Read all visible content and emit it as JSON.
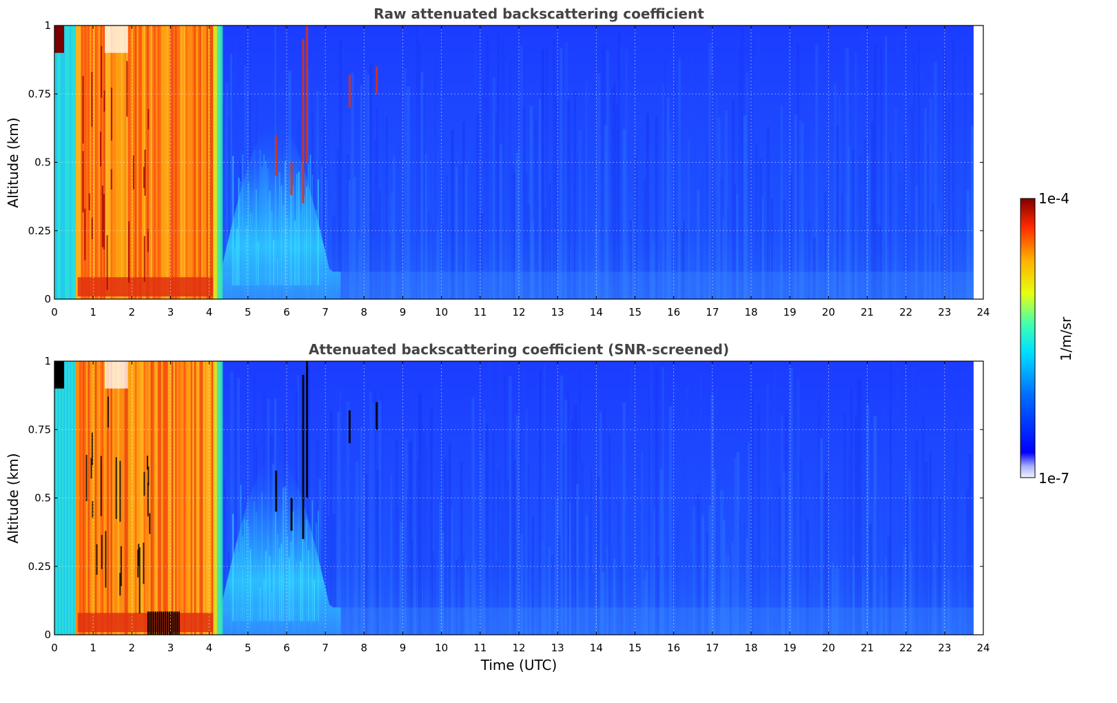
{
  "chart_data": [
    {
      "type": "heatmap",
      "title": "Raw attenuated backscattering coefficient",
      "xlabel": "",
      "ylabel": "Altitude (km)",
      "xlim": [
        0,
        24
      ],
      "ylim": [
        0,
        1
      ],
      "x_ticks": [
        "0",
        "1",
        "2",
        "3",
        "4",
        "5",
        "6",
        "7",
        "8",
        "9",
        "10",
        "11",
        "12",
        "13",
        "14",
        "15",
        "16",
        "17",
        "18",
        "19",
        "20",
        "21",
        "22",
        "23",
        "24"
      ],
      "y_ticks": [
        "0",
        "0.25",
        "0.5",
        "0.75",
        "1"
      ],
      "grid": true,
      "data_extent_x": [
        0,
        23.75
      ],
      "features": [
        {
          "description": "cyan-green near-surface layer",
          "x_range": [
            0,
            0.55
          ],
          "level": "mid"
        },
        {
          "description": "strong orange/red backscatter column (fog/low cloud)",
          "x_range": [
            0.55,
            4.2
          ],
          "level": "high"
        },
        {
          "description": "cyan/light-blue aerosol plume rising",
          "x_range": [
            4.3,
            7.2
          ],
          "altitude_range": [
            0,
            0.65
          ],
          "level": "low-mid"
        },
        {
          "description": "thin red cloud streaks",
          "x_range": [
            6.2,
            8.4
          ],
          "altitude_range": [
            0.4,
            1.0
          ],
          "level": "high"
        },
        {
          "description": "uniform blue background",
          "x_range": [
            7.2,
            23.75
          ],
          "level": "low"
        }
      ]
    },
    {
      "type": "heatmap",
      "title": "Attenuated backscattering coefficient (SNR-screened)",
      "xlabel": "Time (UTC)",
      "ylabel": "Altitude (km)",
      "xlim": [
        0,
        24
      ],
      "ylim": [
        0,
        1
      ],
      "x_ticks": [
        "0",
        "1",
        "2",
        "3",
        "4",
        "5",
        "6",
        "7",
        "8",
        "9",
        "10",
        "11",
        "12",
        "13",
        "14",
        "15",
        "16",
        "17",
        "18",
        "19",
        "20",
        "21",
        "22",
        "23",
        "24"
      ],
      "y_ticks": [
        "0",
        "0.25",
        "0.5",
        "0.75",
        "1"
      ],
      "grid": true,
      "data_extent_x": [
        0,
        23.75
      ],
      "features": [
        {
          "description": "cyan-green near-surface layer",
          "x_range": [
            0,
            0.55
          ],
          "level": "mid"
        },
        {
          "description": "strong orange/red backscatter column with black screened pixels",
          "x_range": [
            0.55,
            4.2
          ],
          "level": "high"
        },
        {
          "description": "cyan/light-blue aerosol plume",
          "x_range": [
            4.3,
            7.2
          ],
          "altitude_range": [
            0,
            0.65
          ],
          "level": "low-mid"
        },
        {
          "description": "uniform blue background",
          "x_range": [
            7.2,
            23.75
          ],
          "level": "low"
        }
      ]
    }
  ],
  "colorbar": {
    "label": "1/m/sr",
    "max_label": "1e-4",
    "min_label": "1e-7",
    "scale": "log",
    "colormap": "jet"
  },
  "colors": {
    "background_blue": "#1a3cff",
    "mid_blue": "#2a6cff",
    "cyan": "#2ee6e6",
    "orange": "#ff9a10",
    "red": "#e03010",
    "dark_red": "#7a0000",
    "screened_black": "#000000"
  }
}
